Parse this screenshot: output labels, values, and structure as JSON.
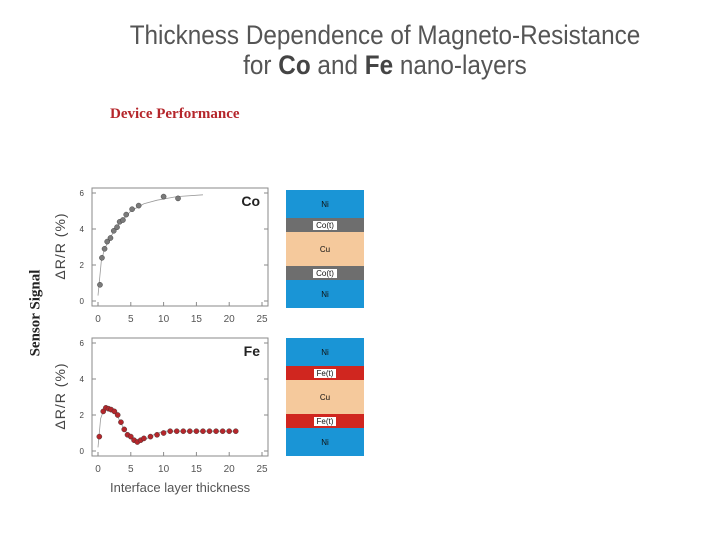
{
  "title": {
    "line1": "Thickness Dependence of Magneto-Resistance",
    "line2_pre": "for ",
    "line2_b1": "Co",
    "line2_mid": " and ",
    "line2_b2": "Fe",
    "line2_post": " nano-layers"
  },
  "section_label": "Device Performance",
  "sensor_label": "Sensor Signal",
  "xlabel": "Interface layer thickness",
  "colors": {
    "co_points": "#7a7a7a",
    "fe_points": "#b5262b",
    "ni": "#1a95d6",
    "co_layer": "#6e6e6e",
    "fe_layer": "#d0261f",
    "cu": "#f5c99c"
  },
  "chart_data": [
    {
      "type": "scatter",
      "label": "Co",
      "ylabel": "ΔR/R (%)",
      "xticks": [
        0,
        5,
        10,
        15,
        20,
        25
      ],
      "yticks": [
        0,
        2,
        4,
        6
      ],
      "xlim": [
        0,
        25
      ],
      "ylim": [
        0,
        6
      ],
      "x": [
        0.3,
        0.6,
        1.0,
        1.4,
        1.9,
        2.4,
        2.9,
        3.3,
        3.8,
        4.3,
        5.2,
        6.2,
        10.0,
        12.2
      ],
      "y": [
        0.9,
        2.4,
        2.9,
        3.3,
        3.5,
        3.9,
        4.1,
        4.4,
        4.5,
        4.8,
        5.1,
        5.3,
        5.8,
        5.7
      ],
      "fit_x": [
        0.0,
        0.5,
        1.0,
        2.0,
        3.0,
        4.0,
        5.0,
        7.0,
        9.0,
        12.0,
        16.0
      ],
      "fit_y": [
        0.3,
        2.2,
        2.9,
        3.6,
        4.2,
        4.6,
        5.0,
        5.4,
        5.6,
        5.8,
        5.9
      ]
    },
    {
      "type": "scatter",
      "label": "Fe",
      "ylabel": "ΔR/R (%)",
      "xticks": [
        0,
        5,
        10,
        15,
        20,
        25
      ],
      "yticks": [
        0,
        2,
        4,
        6
      ],
      "xlim": [
        0,
        25
      ],
      "ylim": [
        0,
        6
      ],
      "x": [
        0.2,
        0.8,
        1.2,
        1.6,
        2.0,
        2.5,
        3.0,
        3.5,
        4.0,
        4.5,
        5.0,
        5.5,
        6.0,
        6.5,
        7.0,
        8.0,
        9.0,
        10.0,
        11.0,
        12.0,
        13.0,
        14.0,
        15.0,
        16.0,
        17.0,
        18.0,
        19.0,
        20.0,
        21.0
      ],
      "y": [
        0.8,
        2.2,
        2.4,
        2.35,
        2.3,
        2.2,
        2.0,
        1.6,
        1.2,
        0.9,
        0.8,
        0.6,
        0.5,
        0.6,
        0.7,
        0.8,
        0.9,
        1.0,
        1.1,
        1.1,
        1.1,
        1.1,
        1.1,
        1.1,
        1.1,
        1.1,
        1.1,
        1.1,
        1.1
      ],
      "fit_x": [
        0.0,
        0.4,
        1.0,
        1.5,
        2.0,
        3.0,
        4.0,
        5.0,
        6.0,
        7.0,
        8.5,
        10.0,
        12.0,
        21.0
      ],
      "fit_y": [
        0.2,
        1.8,
        2.4,
        2.4,
        2.3,
        1.9,
        1.2,
        0.7,
        0.5,
        0.6,
        0.9,
        1.1,
        1.1,
        1.1
      ]
    }
  ],
  "stacks": {
    "co": [
      {
        "label": "Ni",
        "kind": "ni"
      },
      {
        "label": "Co(t)",
        "kind": "co_layer"
      },
      {
        "label": "Cu",
        "kind": "cu"
      },
      {
        "label": "Co(t)",
        "kind": "co_layer"
      },
      {
        "label": "Ni",
        "kind": "ni"
      }
    ],
    "fe": [
      {
        "label": "Ni",
        "kind": "ni"
      },
      {
        "label": "Fe(t)",
        "kind": "fe_layer"
      },
      {
        "label": "Cu",
        "kind": "cu"
      },
      {
        "label": "Fe(t)",
        "kind": "fe_layer"
      },
      {
        "label": "Ni",
        "kind": "ni"
      }
    ]
  }
}
